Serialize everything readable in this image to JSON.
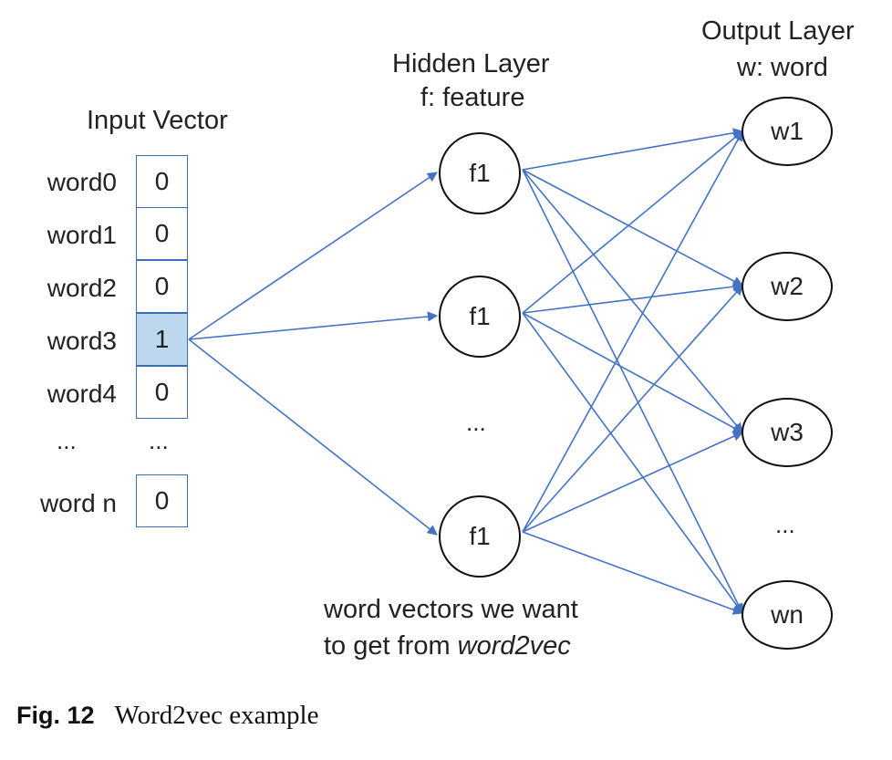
{
  "input": {
    "title": "Input Vector",
    "rows": [
      {
        "label": "word0",
        "value": "0",
        "highlight": false
      },
      {
        "label": "word1",
        "value": "0",
        "highlight": false
      },
      {
        "label": "word2",
        "value": "0",
        "highlight": false
      },
      {
        "label": "word3",
        "value": "1",
        "highlight": true
      },
      {
        "label": "word4",
        "value": "0",
        "highlight": false
      }
    ],
    "ellipsis_label": "...",
    "ellipsis_value": "...",
    "last_row": {
      "label": "word n",
      "value": "0"
    }
  },
  "hidden": {
    "title_line1": "Hidden Layer",
    "title_line2": "f: feature",
    "nodes": [
      "f1",
      "f1",
      "f1"
    ],
    "ellipsis": "..."
  },
  "output": {
    "title_line1": "Output Layer",
    "title_line2": "w: word",
    "nodes": [
      "w1",
      "w2",
      "w3",
      "wn"
    ],
    "ellipsis": "..."
  },
  "note": {
    "line1": "word vectors we want",
    "line2_prefix": "to get from ",
    "line2_italic": "word2vec"
  },
  "caption": {
    "fig_label": "Fig. 12",
    "text": "Word2vec example"
  },
  "colors": {
    "edge": "#4472c4",
    "cell_border": "#3a6fb8",
    "highlight_fill": "#bdd7ee",
    "node_border": "#111111"
  }
}
